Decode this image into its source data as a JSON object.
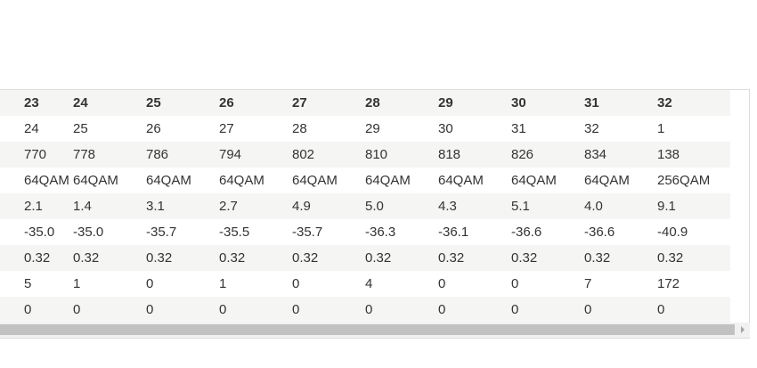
{
  "table": {
    "header": [
      "23",
      "24",
      "25",
      "26",
      "27",
      "28",
      "29",
      "30",
      "31",
      "32"
    ],
    "rows": [
      [
        "24",
        "25",
        "26",
        "27",
        "28",
        "29",
        "30",
        "31",
        "32",
        "1"
      ],
      [
        "770",
        "778",
        "786",
        "794",
        "802",
        "810",
        "818",
        "826",
        "834",
        "138"
      ],
      [
        "64QAM",
        "64QAM",
        "64QAM",
        "64QAM",
        "64QAM",
        "64QAM",
        "64QAM",
        "64QAM",
        "64QAM",
        "256QAM"
      ],
      [
        "2.1",
        "1.4",
        "3.1",
        "2.7",
        "4.9",
        "5.0",
        "4.3",
        "5.1",
        "4.0",
        "9.1"
      ],
      [
        "-35.0",
        "-35.0",
        "-35.7",
        "-35.5",
        "-35.7",
        "-36.3",
        "-36.1",
        "-36.6",
        "-36.6",
        "-40.9"
      ],
      [
        "0.32",
        "0.32",
        "0.32",
        "0.32",
        "0.32",
        "0.32",
        "0.32",
        "0.32",
        "0.32",
        "0.32"
      ],
      [
        "5",
        "1",
        "0",
        "1",
        "0",
        "4",
        "0",
        "0",
        "7",
        "172"
      ],
      [
        "0",
        "0",
        "0",
        "0",
        "0",
        "0",
        "0",
        "0",
        "0",
        "0"
      ]
    ]
  }
}
